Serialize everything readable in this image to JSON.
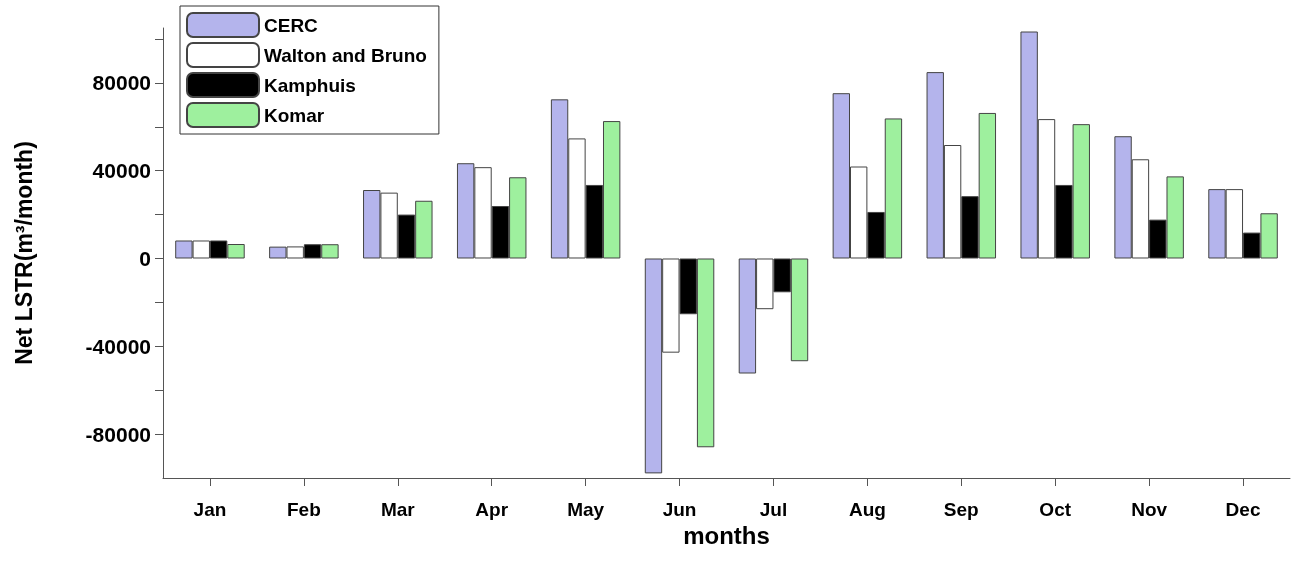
{
  "chart_data": {
    "type": "bar",
    "xlabel": "months",
    "ylabel": "Net LSTR(m³/month)",
    "categories": [
      "Jan",
      "Feb",
      "Mar",
      "Apr",
      "May",
      "Jun",
      "Jul",
      "Aug",
      "Sep",
      "Oct",
      "Nov",
      "Dec"
    ],
    "series": [
      {
        "name": "CERC",
        "color": "#b4b4ec",
        "values": [
          8200,
          5400,
          31200,
          43400,
          72500,
          -97900,
          -52400,
          75300,
          84900,
          103400,
          55700,
          31600
        ]
      },
      {
        "name": "Walton and Bruno",
        "color": "#ffffff",
        "values": [
          8200,
          5500,
          30000,
          41600,
          54700,
          -42900,
          -23100,
          41900,
          51700,
          63500,
          45200,
          31600
        ]
      },
      {
        "name": "Kamphuis",
        "color": "#000000",
        "values": [
          8200,
          6500,
          20000,
          23900,
          33500,
          -25400,
          -15400,
          21200,
          28400,
          33500,
          17700,
          11800
        ]
      },
      {
        "name": "Komar",
        "color": "#9ef09e",
        "values": [
          6600,
          6500,
          26300,
          37000,
          62600,
          -86000,
          -46800,
          63800,
          66300,
          61200,
          37400,
          20600
        ]
      }
    ],
    "ylim": [
      -100000,
      105000
    ],
    "yticks": [
      {
        "value": -80000,
        "label": "-80000"
      },
      {
        "value": -60000,
        "label": null
      },
      {
        "value": -40000,
        "label": "-40000"
      },
      {
        "value": -20000,
        "label": null
      },
      0,
      {
        "value": 20000,
        "label": null
      },
      40000,
      {
        "value": 60000,
        "label": null
      },
      80000,
      {
        "value": 100000,
        "label": null
      }
    ],
    "grid": false,
    "legend": "top left"
  }
}
